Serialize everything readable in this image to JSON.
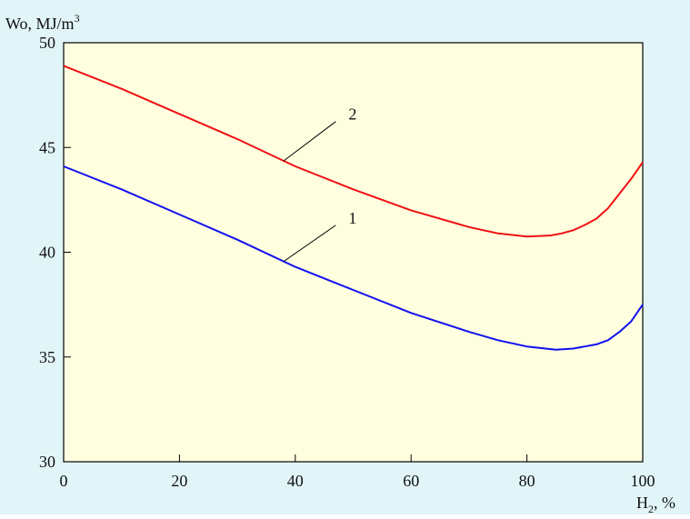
{
  "chart_data": {
    "type": "line",
    "ylabel": "Wo, MJ/m",
    "ylabel_sup": "3",
    "xlabel": "H",
    "xlabel_sub": "2",
    "xlabel_suffix": ", %",
    "xlim": [
      0,
      100
    ],
    "ylim": [
      30,
      50
    ],
    "xticks": [
      0,
      20,
      40,
      60,
      80,
      100
    ],
    "yticks": [
      30,
      35,
      40,
      45,
      50
    ],
    "grid": false,
    "background_color": "#e1f5f8",
    "plot_background_color": "#ffffe0",
    "series": [
      {
        "name": "1",
        "color": "#1010f0",
        "x": [
          0,
          10,
          20,
          30,
          40,
          50,
          60,
          70,
          75,
          80,
          85,
          88,
          90,
          92,
          94,
          96,
          98,
          100
        ],
        "y": [
          44.1,
          43.0,
          41.8,
          40.6,
          39.3,
          38.2,
          37.1,
          36.2,
          35.8,
          35.5,
          35.35,
          35.4,
          35.5,
          35.6,
          35.8,
          36.2,
          36.7,
          37.5
        ]
      },
      {
        "name": "2",
        "color": "#f01010",
        "x": [
          0,
          10,
          20,
          30,
          40,
          50,
          60,
          70,
          75,
          80,
          84,
          86,
          88,
          90,
          92,
          94,
          96,
          98,
          100
        ],
        "y": [
          48.9,
          47.8,
          46.6,
          45.4,
          44.1,
          43.0,
          42.0,
          41.2,
          40.9,
          40.75,
          40.8,
          40.9,
          41.05,
          41.3,
          41.6,
          42.1,
          42.8,
          43.5,
          44.3
        ]
      }
    ],
    "annotations": [
      {
        "text": "1",
        "series_index": 0,
        "point_x": 38,
        "label_x": 47,
        "label_y": 41.55
      },
      {
        "text": "2",
        "series_index": 1,
        "point_x": 38,
        "label_x": 47,
        "label_y": 46.5
      }
    ]
  }
}
